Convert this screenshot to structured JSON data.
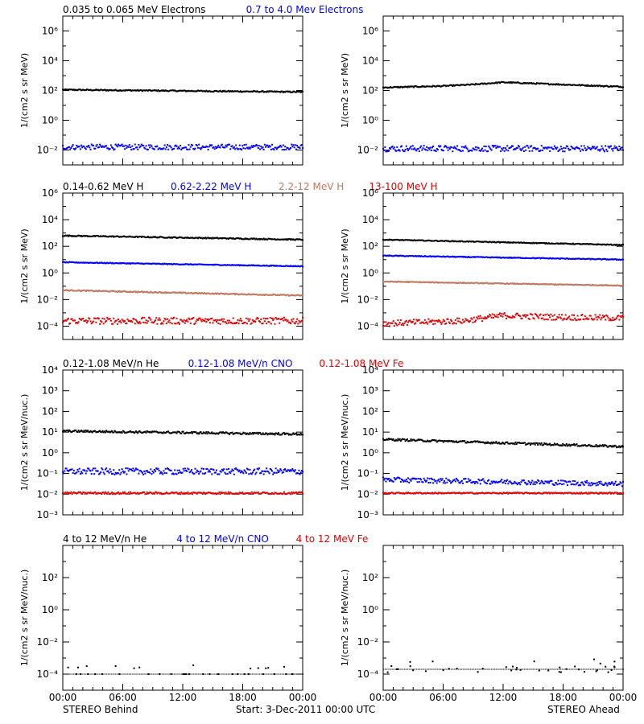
{
  "colors": {
    "black": "#000000",
    "blue": "#0000ff",
    "tan": "#c07860",
    "red": "#e00000",
    "bg": "#ffffff"
  },
  "footer": {
    "left_label": "STEREO Behind",
    "start_label": "Start:  3-Dec-2011 00:00 UTC",
    "right_label": "STEREO Ahead"
  },
  "chart_data": [
    {
      "type": "scatter",
      "panel": "electrons",
      "title": "",
      "legend": [
        {
          "text": "0.035 to 0.065 MeV Electrons",
          "color": "#000000"
        },
        {
          "text": "0.7 to 4.0 Mev Electrons",
          "color": "#0000ff"
        }
      ],
      "ylabel": "1/(cm2 s sr MeV)",
      "yscale": "log",
      "ylim_log10": [
        -3,
        7
      ],
      "ytick_exponents": [
        -2,
        0,
        2,
        4,
        6
      ],
      "xlim_hours": [
        0,
        24
      ],
      "xtick_labels": [
        "00:00",
        "06:00",
        "12:00",
        "18:00",
        "00:00"
      ],
      "plots": [
        {
          "spacecraft": "STEREO Behind",
          "series": [
            {
              "color": "#000000",
              "log10_start": 2.05,
              "log10_end": 1.9,
              "scatter": 0.04
            },
            {
              "color": "#0000ff",
              "log10_start": -1.8,
              "log10_end": -1.8,
              "scatter": 0.18
            }
          ]
        },
        {
          "spacecraft": "STEREO Ahead",
          "series": [
            {
              "color": "#000000",
              "log10_points": [
                [
                  0,
                  2.2
                ],
                [
                  6,
                  2.3
                ],
                [
                  9,
                  2.4
                ],
                [
                  12,
                  2.55
                ],
                [
                  18,
                  2.4
                ],
                [
                  24,
                  2.25
                ]
              ],
              "scatter": 0.04
            },
            {
              "color": "#0000ff",
              "log10_start": -1.9,
              "log10_end": -1.9,
              "scatter": 0.2
            }
          ]
        }
      ]
    },
    {
      "type": "scatter",
      "panel": "protons",
      "title": "",
      "legend": [
        {
          "text": "0.14-0.62 MeV H",
          "color": "#000000"
        },
        {
          "text": "0.62-2.22 MeV H",
          "color": "#0000ff"
        },
        {
          "text": "2.2-12 MeV H",
          "color": "#c07860"
        },
        {
          "text": "13-100 MeV H",
          "color": "#e00000"
        }
      ],
      "ylabel": "1/(cm2 s sr MeV)",
      "yscale": "log",
      "ylim_log10": [
        -5,
        6
      ],
      "ytick_exponents": [
        -4,
        -2,
        0,
        2,
        4,
        6
      ],
      "xlim_hours": [
        0,
        24
      ],
      "xtick_labels": [
        "00:00",
        "06:00",
        "12:00",
        "18:00",
        "00:00"
      ],
      "plots": [
        {
          "spacecraft": "STEREO Behind",
          "series": [
            {
              "color": "#000000",
              "log10_start": 2.8,
              "log10_end": 2.5,
              "scatter": 0.04
            },
            {
              "color": "#0000ff",
              "log10_start": 0.8,
              "log10_end": 0.5,
              "scatter": 0.03
            },
            {
              "color": "#c07860",
              "log10_start": -1.3,
              "log10_end": -1.7,
              "scatter": 0.04
            },
            {
              "color": "#e00000",
              "log10_start": -3.6,
              "log10_end": -3.6,
              "scatter": 0.25
            }
          ]
        },
        {
          "spacecraft": "STEREO Ahead",
          "series": [
            {
              "color": "#000000",
              "log10_start": 2.5,
              "log10_end": 2.1,
              "scatter": 0.03
            },
            {
              "color": "#0000ff",
              "log10_start": 1.3,
              "log10_end": 1.0,
              "scatter": 0.03
            },
            {
              "color": "#c07860",
              "log10_start": -0.65,
              "log10_end": -0.95,
              "scatter": 0.03
            },
            {
              "color": "#e00000",
              "log10_points": [
                [
                  0,
                  -3.8
                ],
                [
                  8,
                  -3.6
                ],
                [
                  12,
                  -3.2
                ],
                [
                  16,
                  -3.3
                ],
                [
                  24,
                  -3.4
                ]
              ],
              "scatter": 0.22
            }
          ]
        }
      ]
    },
    {
      "type": "scatter",
      "panel": "heavy-ions-low",
      "title": "",
      "legend": [
        {
          "text": "0.12-1.08 MeV/n He",
          "color": "#000000"
        },
        {
          "text": "0.12-1.08 MeV/n CNO",
          "color": "#0000ff"
        },
        {
          "text": "0.12-1.08 MeV Fe",
          "color": "#e00000"
        }
      ],
      "ylabel": "1/(cm2 s sr MeV/nuc.)",
      "yscale": "log",
      "ylim_log10": [
        -3,
        4
      ],
      "ytick_exponents": [
        -3,
        -2,
        -1,
        0,
        1,
        2,
        3,
        4
      ],
      "xlim_hours": [
        0,
        24
      ],
      "xtick_labels": [
        "00:00",
        "06:00",
        "12:00",
        "18:00",
        "00:00"
      ],
      "plots": [
        {
          "spacecraft": "STEREO Behind",
          "series": [
            {
              "color": "#000000",
              "log10_start": 1.05,
              "log10_end": 0.9,
              "scatter": 0.05
            },
            {
              "color": "#0000ff",
              "log10_start": -0.9,
              "log10_end": -0.9,
              "scatter": 0.15
            },
            {
              "color": "#e00000",
              "log10_start": -1.95,
              "log10_end": -1.95,
              "scatter": 0.05
            }
          ]
        },
        {
          "spacecraft": "STEREO Ahead",
          "series": [
            {
              "color": "#000000",
              "log10_start": 0.65,
              "log10_end": 0.3,
              "scatter": 0.05
            },
            {
              "color": "#0000ff",
              "log10_start": -1.3,
              "log10_end": -1.5,
              "scatter": 0.12
            },
            {
              "color": "#e00000",
              "log10_start": -1.95,
              "log10_end": -1.95,
              "scatter": 0.03
            }
          ]
        }
      ]
    },
    {
      "type": "scatter",
      "panel": "heavy-ions-high",
      "title": "",
      "legend": [
        {
          "text": "4 to 12 MeV/n He",
          "color": "#000000"
        },
        {
          "text": "4 to 12 MeV/n CNO",
          "color": "#0000ff"
        },
        {
          "text": "4 to 12 MeV Fe",
          "color": "#e00000"
        }
      ],
      "ylabel": "1/(cm2 s sr MeV/nuc.)",
      "yscale": "log",
      "ylim_log10": [
        -5,
        4
      ],
      "ytick_exponents": [
        -4,
        -2,
        0,
        2
      ],
      "xlim_hours": [
        0,
        24
      ],
      "xtick_labels": [
        "00:00",
        "06:00",
        "12:00",
        "18:00",
        "00:00"
      ],
      "plots": [
        {
          "spacecraft": "STEREO Behind",
          "series": [
            {
              "color": "#000000",
              "log10_start": -4.0,
              "log10_end": -4.0,
              "scatter": 0.0,
              "sparse": true
            }
          ]
        },
        {
          "spacecraft": "STEREO Ahead",
          "series": [
            {
              "color": "#000000",
              "log10_start": -3.7,
              "log10_end": -3.7,
              "scatter": 0.2,
              "sparse": true
            }
          ]
        }
      ]
    }
  ]
}
